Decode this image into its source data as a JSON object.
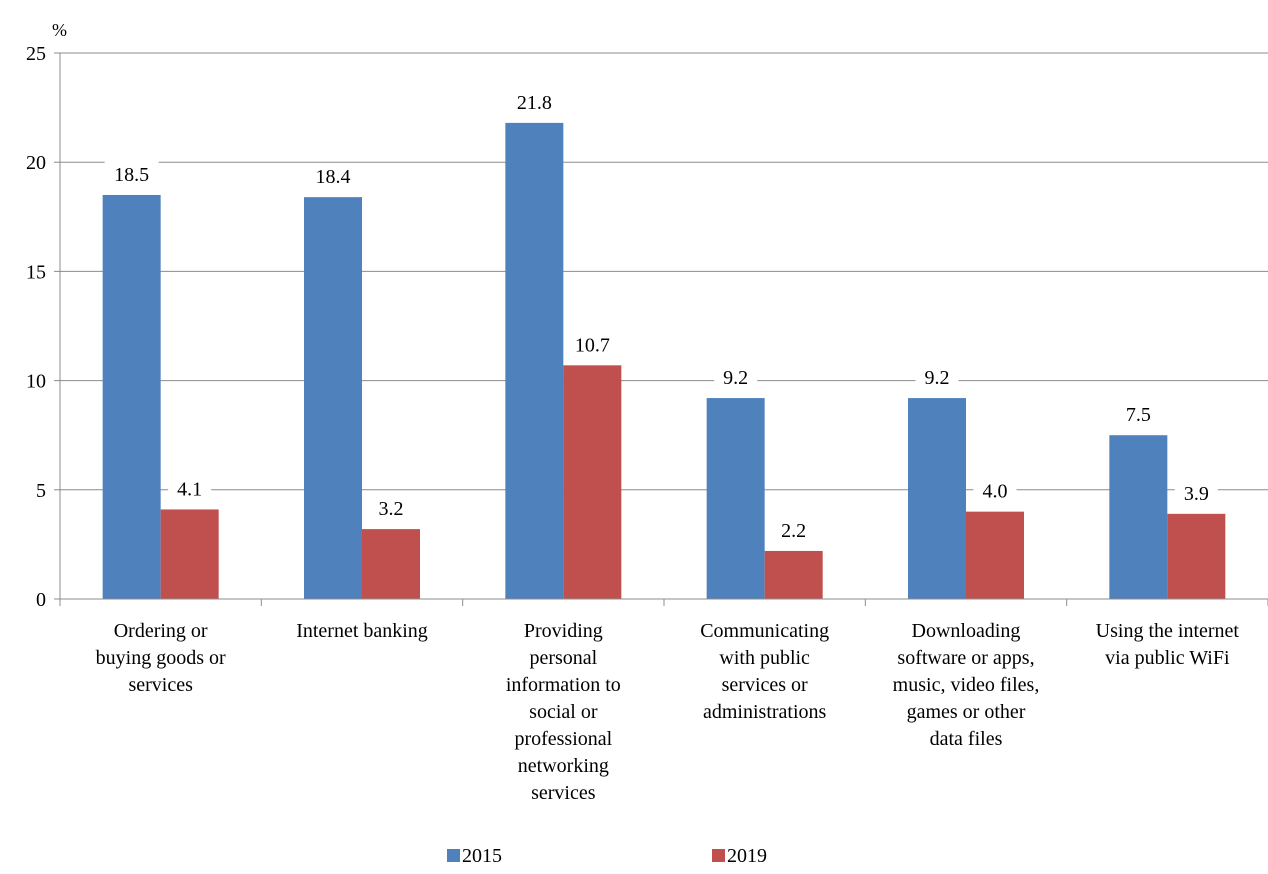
{
  "chart_data": {
    "type": "bar",
    "unit": "%",
    "categories": [
      [
        "Ordering or",
        "buying goods or",
        "services"
      ],
      [
        "Internet banking"
      ],
      [
        "Providing",
        "personal",
        "information to",
        "social or",
        "professional",
        "networking",
        "services"
      ],
      [
        "Communicating",
        "with public",
        "services or",
        "administrations"
      ],
      [
        "Downloading",
        "software or apps,",
        "music, video files,",
        "games or other",
        "data files"
      ],
      [
        "Using the internet",
        "via public WiFi"
      ]
    ],
    "series": [
      {
        "name": "2015",
        "color": "#4F81BD",
        "values": [
          18.5,
          18.4,
          21.8,
          9.2,
          9.2,
          7.5
        ],
        "labels": [
          "18.5",
          "18.4",
          "21.8",
          "9.2",
          "9.2",
          "7.5"
        ]
      },
      {
        "name": "2019",
        "color": "#C0504D",
        "values": [
          4.1,
          3.2,
          10.7,
          2.2,
          4.0,
          3.9
        ],
        "labels": [
          "4.1",
          "3.2",
          "10.7",
          "2.2",
          "4.0",
          "3.9"
        ]
      }
    ],
    "ylim": [
      0,
      25
    ],
    "yticks": [
      "0",
      "5",
      "10",
      "15",
      "20",
      "25"
    ],
    "grid": true,
    "legend": "bottom-center"
  }
}
